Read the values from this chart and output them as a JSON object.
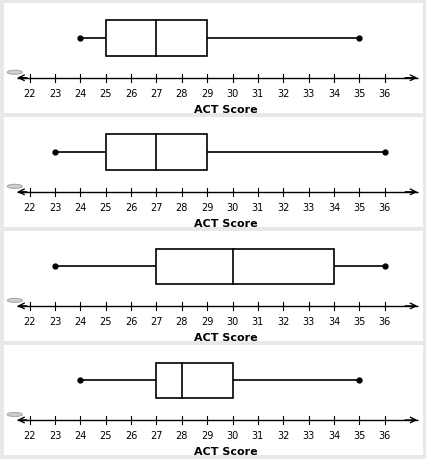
{
  "boxplots": [
    {
      "min": 24,
      "q1": 25,
      "median": 27,
      "q3": 29,
      "max": 35
    },
    {
      "min": 23,
      "q1": 25,
      "median": 27,
      "q3": 29,
      "max": 36
    },
    {
      "min": 23,
      "q1": 27,
      "median": 30,
      "q3": 34,
      "max": 36
    },
    {
      "min": 24,
      "q1": 27,
      "median": 28,
      "q3": 30,
      "max": 35
    }
  ],
  "xlabel": "ACT Score",
  "xlim": [
    21.0,
    37.5
  ],
  "xticks": [
    22,
    23,
    24,
    25,
    26,
    27,
    28,
    29,
    30,
    31,
    32,
    33,
    34,
    35,
    36
  ],
  "background_color": "#e8e8e8",
  "panel_color": "#ffffff",
  "box_color": "#ffffff",
  "box_edge_color": "#000000",
  "line_color": "#000000",
  "circle_fill": "#d0d0d0",
  "circle_edge": "#aaaaaa"
}
